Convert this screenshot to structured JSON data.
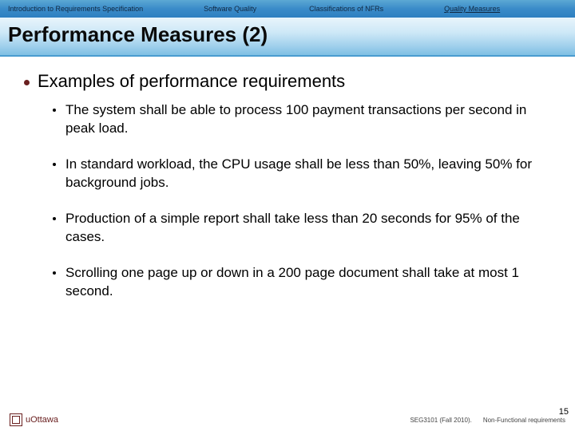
{
  "nav": {
    "items": [
      "Introduction to Requirements Specification",
      "Software Quality",
      "Classifications of NFRs",
      "Quality Measures"
    ],
    "background_gradient": [
      "#5ba8d4",
      "#3a8bc9",
      "#2d7fc0"
    ],
    "font_size": 9,
    "text_color": "#102840",
    "active_index": 3
  },
  "title_bar": {
    "title": "Performance Measures (2)",
    "font_size": 26,
    "font_weight": "bold",
    "text_color": "#0a0a0a",
    "background_gradient": [
      "#e8f4fb",
      "#cde8f7",
      "#a8d4ee",
      "#7fc0e4"
    ],
    "border_color": "#4a9cd0"
  },
  "content": {
    "main": {
      "text": "Examples of performance requirements",
      "bullet_color": "#6a2020",
      "font_size": 22
    },
    "sub_items": [
      "The system shall be able to process 100 payment transactions per second in peak load.",
      "In standard workload, the CPU usage shall be less than 50%, leaving 50% for background jobs.",
      "Production of a simple report shall take less than 20 seconds for 95% of the cases.",
      "Scrolling one page up or down in a 200 page document shall take at most 1 second."
    ],
    "sub_font_size": 17,
    "sub_bullet_color": "#000000"
  },
  "footer": {
    "logo_text": "uOttawa",
    "logo_color": "#6a2020",
    "course": "SEG3101 (Fall 2010).",
    "topic": "Non-Functional requirements",
    "font_size": 8,
    "text_color": "#444444"
  },
  "page_number": "15"
}
